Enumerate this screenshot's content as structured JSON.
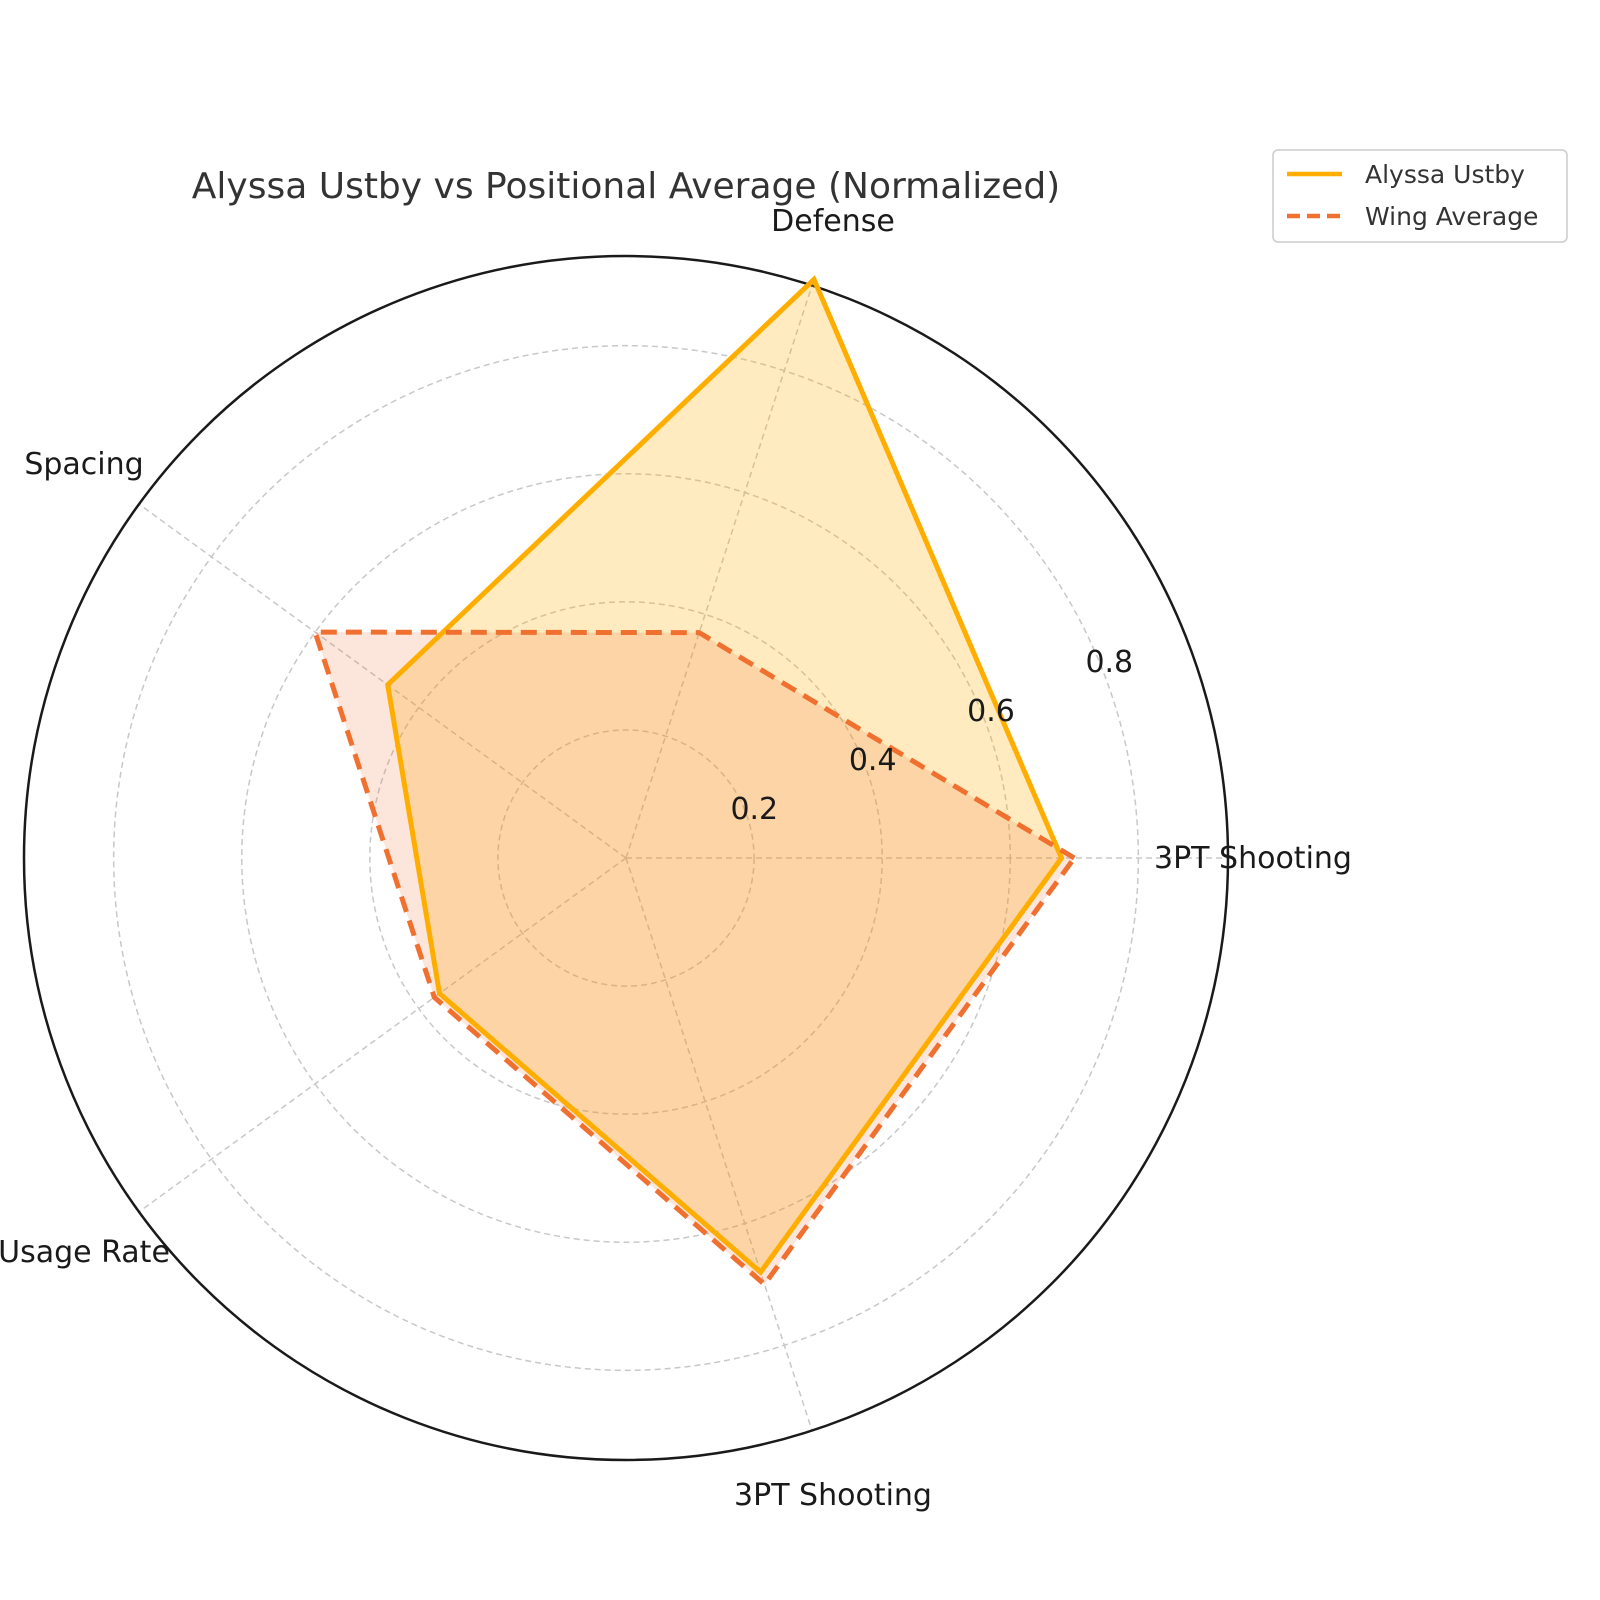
{
  "chart_data": {
    "type": "radar",
    "title": "Alyssa Ustby vs Positional Average (Normalized)",
    "categories": [
      "3PT Shooting",
      "Defense",
      "Spacing",
      "Usage Rate",
      "3PT Shooting"
    ],
    "series": [
      {
        "name": "Alyssa Ustby",
        "values": [
          0.68,
          0.95,
          0.46,
          0.36,
          0.68
        ],
        "color": "#ffae00",
        "line_style": "solid",
        "fill_opacity": 0.25
      },
      {
        "name": "Wing Average",
        "values": [
          0.7,
          0.37,
          0.6,
          0.37,
          0.7
        ],
        "color": "#f07030",
        "line_style": "dashed",
        "fill_opacity": 0.18
      }
    ],
    "radial_ticks": [
      "0.2",
      "0.4",
      "0.6",
      "0.8"
    ],
    "radial_tick_values": [
      0.2,
      0.4,
      0.6,
      0.8
    ],
    "rlim": [
      0,
      0.94
    ],
    "grid": true,
    "legend_position": "top-right"
  }
}
